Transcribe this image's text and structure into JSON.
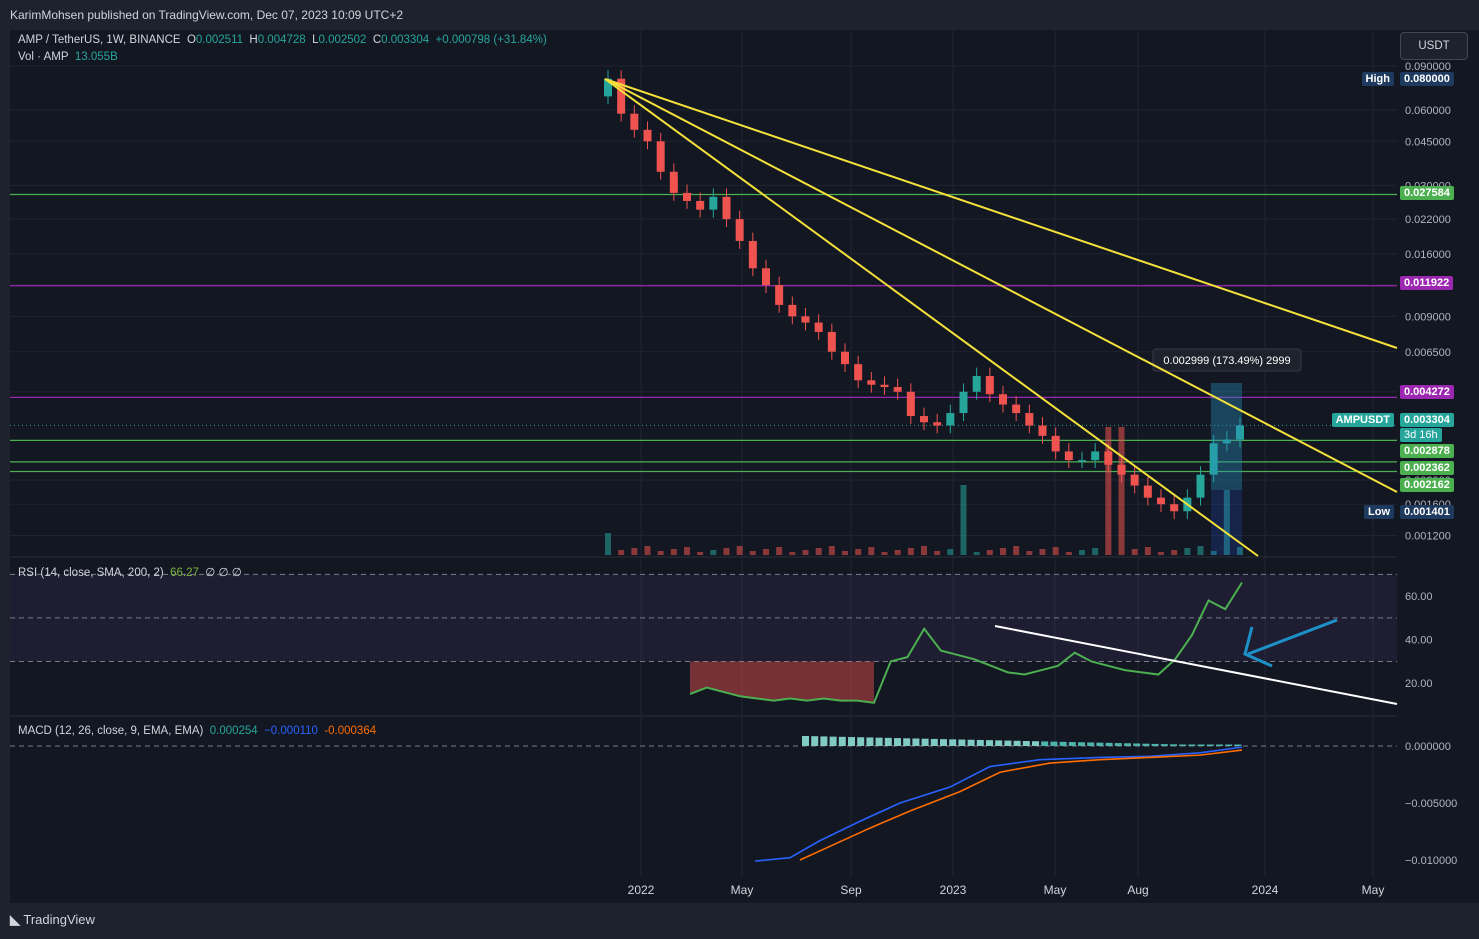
{
  "header": {
    "publisher_line": "KarimMohsen published on TradingView.com, Dec 07, 2023 10:09 UTC+2"
  },
  "legend": {
    "symbol": "AMP / TetherUS, 1W, BINANCE",
    "o_label": "O",
    "o_value": "0.002511",
    "h_label": "H",
    "h_value": "0.004728",
    "l_label": "L",
    "l_value": "0.002502",
    "c_label": "C",
    "c_value": "0.003304",
    "change": "+0.000798 (+31.84%)",
    "vol_label": "Vol · AMP",
    "vol_value": "13.055B"
  },
  "currency_button": "USDT",
  "price_axis_ticks": [
    "0.090000",
    "0.060000",
    "0.045000",
    "0.030000",
    "0.022000",
    "0.016000",
    "0.012000",
    "0.009000",
    "0.006500",
    "0.004500",
    "0.002000",
    "0.001600",
    "0.001200"
  ],
  "price_tags": [
    {
      "label": "High",
      "value": "0.080000",
      "color": "#1e3a5f"
    },
    {
      "value": "0.027584",
      "color": "#4caf50"
    },
    {
      "value": "0.011922",
      "color": "#9c27b0"
    },
    {
      "value": "0.004272",
      "color": "#9c27b0"
    },
    {
      "label": "AMPUSDT",
      "value": "0.003304",
      "sub": "3d 16h",
      "color": "#26a69a"
    },
    {
      "value": "0.002878",
      "color": "#4caf50"
    },
    {
      "value": "0.002362",
      "color": "#4caf50"
    },
    {
      "value": "0.002162",
      "color": "#4caf50"
    },
    {
      "label": "Low",
      "value": "0.001401",
      "color": "#1e3a5f"
    }
  ],
  "measure_label": "0.002999 (173.49%) 2999",
  "rsi": {
    "title": "RSI (14, close, SMA, 200, 2)",
    "value": "66.27",
    "na": "∅ ∅ ∅",
    "ticks": [
      "60.00",
      "40.00",
      "20.00"
    ]
  },
  "macd": {
    "title": "MACD (12, 26, close, 9, EMA, EMA)",
    "hist": "0.000254",
    "macd": "−0.000110",
    "signal": "-0.000364",
    "ticks": [
      "0.000000",
      "−0.005000",
      "−0.010000"
    ]
  },
  "time_axis": [
    "2022",
    "May",
    "Sep",
    "2023",
    "May",
    "Aug",
    "2024",
    "May"
  ],
  "footer": {
    "brand": "TradingView"
  },
  "chart_data": {
    "type": "candlestick",
    "symbol": "AMPUSDT",
    "interval": "1W",
    "price_scale": "log",
    "ylim": [
      0.0011,
      0.095
    ],
    "horizontal_levels": [
      {
        "value": 0.027584,
        "color": "#4caf50"
      },
      {
        "value": 0.011922,
        "color": "#9c27b0"
      },
      {
        "value": 0.004272,
        "color": "#9c27b0"
      },
      {
        "value": 0.002878,
        "color": "#4caf50"
      },
      {
        "value": 0.002362,
        "color": "#4caf50"
      },
      {
        "value": 0.002162,
        "color": "#4caf50"
      }
    ],
    "price_path": [
      0.08,
      0.058,
      0.05,
      0.045,
      0.034,
      0.028,
      0.026,
      0.024,
      0.027,
      0.022,
      0.018,
      0.014,
      0.012,
      0.01,
      0.009,
      0.0085,
      0.0078,
      0.0065,
      0.0058,
      0.005,
      0.0048,
      0.0047,
      0.0045,
      0.0036,
      0.0034,
      0.0033,
      0.0037,
      0.0045,
      0.0052,
      0.0044,
      0.004,
      0.0037,
      0.0033,
      0.003,
      0.0026,
      0.0024,
      0.0024,
      0.0026,
      0.0023,
      0.0021,
      0.0019,
      0.0017,
      0.0016,
      0.0015,
      0.0017,
      0.0021,
      0.0028,
      0.0029,
      0.0033
    ],
    "rsi_path": [
      15,
      18,
      16,
      14,
      13,
      12,
      13,
      12,
      13,
      12,
      12,
      11,
      30,
      32,
      45,
      35,
      33,
      31,
      28,
      25,
      24,
      26,
      28,
      34,
      30,
      28,
      26,
      25,
      24,
      31,
      42,
      58,
      54,
      66.27
    ],
    "rsi_levels": [
      70,
      50,
      30
    ]
  }
}
